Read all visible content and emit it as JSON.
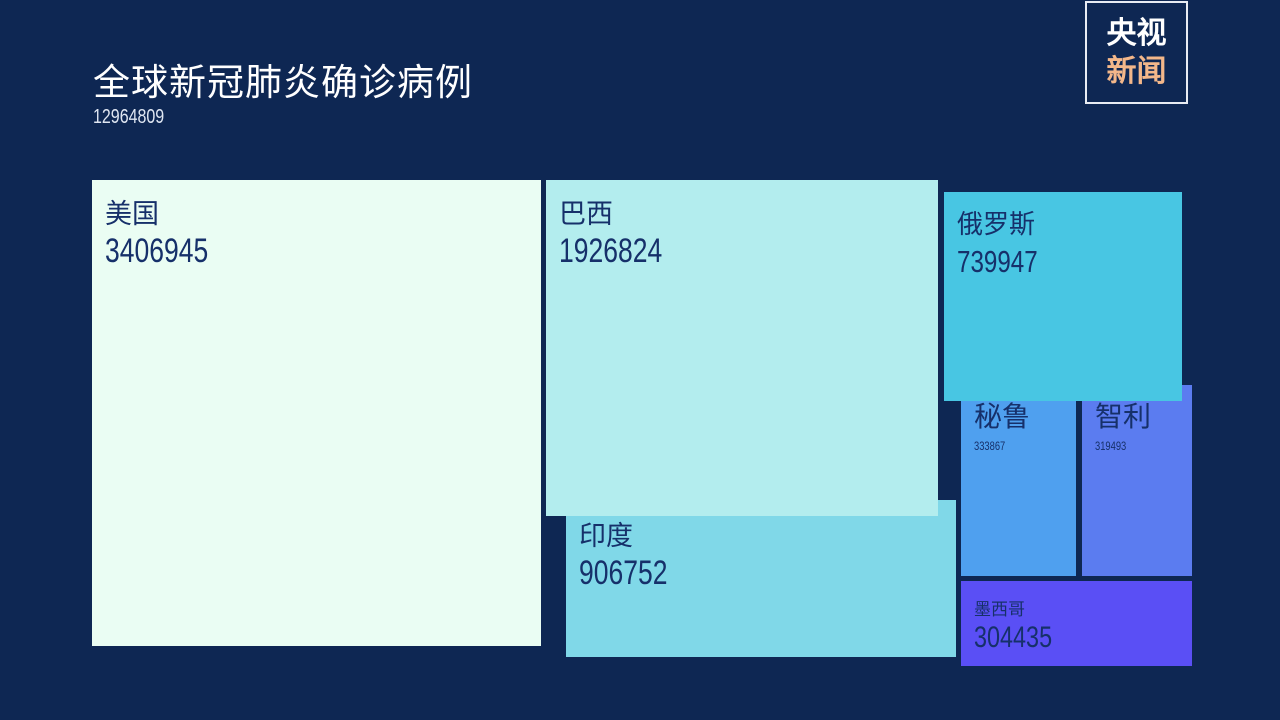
{
  "logo": {
    "line1": "央视",
    "line2": "新闻"
  },
  "chart_data": {
    "type": "treemap",
    "title": "全球新冠肺炎确诊病例",
    "subtitle": "12964809",
    "items": [
      {
        "name": "美国",
        "value": "3406945",
        "color": "#eafdf3"
      },
      {
        "name": "巴西",
        "value": "1926824",
        "color": "#b3edee"
      },
      {
        "name": "印度",
        "value": "906752",
        "color": "#80d8e8"
      },
      {
        "name": "俄罗斯",
        "value": "739947",
        "color": "#48c6e3"
      },
      {
        "name": "秘鲁",
        "value": "333867",
        "color": "#4fa0ef"
      },
      {
        "name": "智利",
        "value": "319493",
        "color": "#5b7cf0"
      },
      {
        "name": "墨西哥",
        "value": "304435",
        "color": "#5a4ff5"
      }
    ]
  }
}
